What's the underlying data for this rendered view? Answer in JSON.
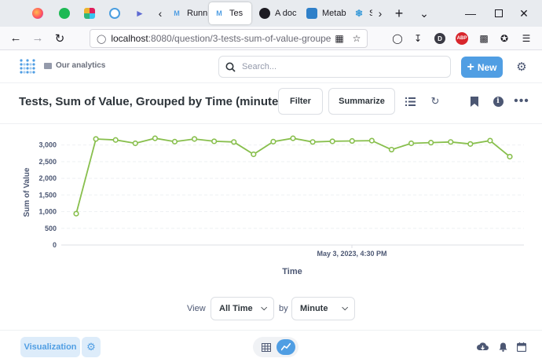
{
  "browser": {
    "tabs": [
      {
        "label": "Runni",
        "icon_color": "#509ee3",
        "icon": "M",
        "active": false
      },
      {
        "label": "Tes",
        "icon_color": "#509ee3",
        "icon": "M",
        "active": true
      },
      {
        "label": "A doc",
        "icon_color": "#1c1b22",
        "icon": "",
        "active": false
      },
      {
        "label": "Metab",
        "icon_color": "#2f80c9",
        "icon": "",
        "active": false
      },
      {
        "label": "S",
        "icon_color": "#3a9bd9",
        "icon": "",
        "active": false
      }
    ],
    "url_host": "localhost",
    "url_path": ":8080/question/3-tests-sum-of-value-groupe"
  },
  "header": {
    "collection": "Our analytics",
    "search_placeholder": "Search...",
    "new_label": "New"
  },
  "question": {
    "title": "Tests, Sum of Value, Grouped by Time (minute)",
    "filter_label": "Filter",
    "summarize_label": "Summarize"
  },
  "chart_data": {
    "type": "line",
    "xlabel": "Time",
    "ylabel": "Sum of Value",
    "x_tick_label": "May 3, 2023, 4:30 PM",
    "y_ticks": [
      "0",
      "500",
      "1,000",
      "1,500",
      "2,000",
      "2,500",
      "3,000"
    ],
    "ylim": [
      0,
      3250
    ],
    "grid": true,
    "color": "#88bf4d",
    "values": [
      940,
      3180,
      3150,
      3050,
      3200,
      3100,
      3180,
      3110,
      3090,
      2720,
      3100,
      3200,
      3090,
      3110,
      3120,
      3130,
      2860,
      3050,
      3070,
      3090,
      3030,
      3130,
      2650
    ]
  },
  "controls": {
    "view_label": "View",
    "view_value": "All Time",
    "by_label": "by",
    "by_value": "Minute"
  },
  "footer": {
    "visualization_label": "Visualization"
  }
}
